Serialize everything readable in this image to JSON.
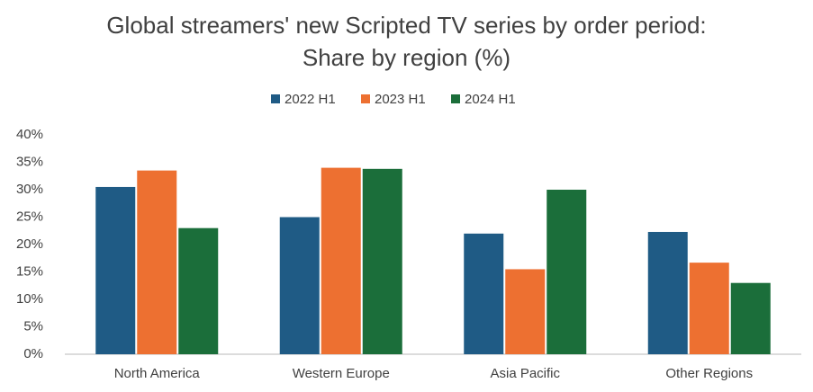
{
  "chart_data": {
    "type": "bar",
    "title": "Global streamers' new Scripted TV series by order period: Share by region (%)",
    "categories": [
      "North America",
      "Western Europe",
      "Asia Pacific",
      "Other Regions"
    ],
    "series": [
      {
        "name": "2022 H1",
        "color": "#1f5b85",
        "values": [
          30.5,
          25,
          22,
          22.3
        ]
      },
      {
        "name": "2023 H1",
        "color": "#ed7031",
        "values": [
          33.5,
          34,
          15.5,
          16.7
        ]
      },
      {
        "name": "2024 H1",
        "color": "#1b6e3a",
        "values": [
          23,
          33.8,
          30,
          13
        ]
      }
    ],
    "ylim": [
      0,
      40
    ],
    "yticks": [
      {
        "value": 0,
        "label": "0%"
      },
      {
        "value": 5,
        "label": "5%"
      },
      {
        "value": 10,
        "label": "10%"
      },
      {
        "value": 15,
        "label": "15%"
      },
      {
        "value": 20,
        "label": "20%"
      },
      {
        "value": 25,
        "label": "25%"
      },
      {
        "value": 30,
        "label": "30%"
      },
      {
        "value": 35,
        "label": "35%"
      },
      {
        "value": 40,
        "label": "40%"
      }
    ],
    "grid": false,
    "legend": "top"
  }
}
